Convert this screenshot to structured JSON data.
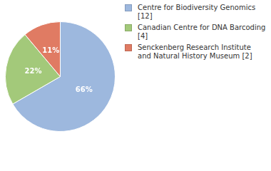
{
  "chart_data": {
    "type": "pie",
    "categories": [
      "Centre for Biodiversity Genomics [12]",
      "Canadian Centre for DNA Barcoding [4]",
      "Senckenberg Research Institute and Natural History Museum [2]"
    ],
    "values": [
      66,
      22,
      11
    ],
    "value_labels": [
      "66%",
      "22%",
      "11%"
    ],
    "colors": [
      "#9db8de",
      "#a3c97a",
      "#e07b63"
    ],
    "data_labels": true,
    "legend": "right"
  }
}
